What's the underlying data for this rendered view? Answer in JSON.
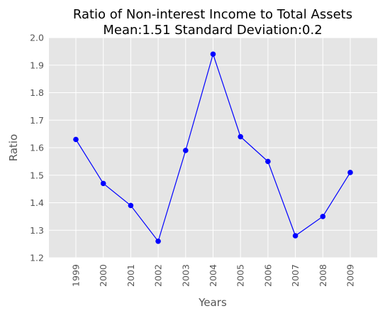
{
  "chart_data": {
    "type": "line",
    "title": "Ratio of Non-interest Income to Total Assets",
    "subtitle": "Mean:1.51 Standard Deviation:0.2",
    "xlabel": "Years",
    "ylabel": "Ratio",
    "categories": [
      "1999",
      "2000",
      "2001",
      "2002",
      "2003",
      "2004",
      "2005",
      "2006",
      "2007",
      "2008",
      "2009"
    ],
    "series": [
      {
        "values": [
          1.63,
          1.47,
          1.39,
          1.26,
          1.59,
          1.94,
          1.64,
          1.55,
          1.28,
          1.35,
          1.51
        ]
      }
    ],
    "ylim": [
      1.2,
      2.0
    ],
    "yticks": [
      "1.2",
      "1.3",
      "1.4",
      "1.5",
      "1.6",
      "1.7",
      "1.8",
      "1.9",
      "2.0"
    ],
    "grid": true,
    "colors": {
      "line": "#0000ff",
      "marker": "#0000ff",
      "plot_bg": "#e5e5e5",
      "grid": "#ffffff"
    }
  }
}
